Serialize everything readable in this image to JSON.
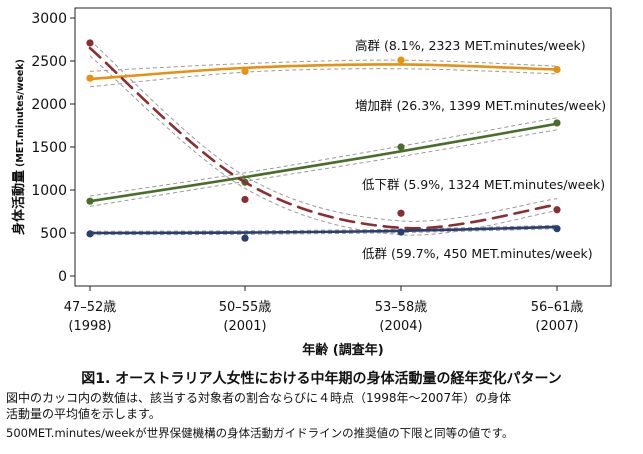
{
  "chart_data": {
    "type": "line",
    "ylabel": "身体活動量",
    "ylabel_unit": "(MET.minutes/week)",
    "xlabel": "年齢 (調査年)",
    "ylim": [
      0,
      3000
    ],
    "yticks": [
      0,
      500,
      1000,
      1500,
      2000,
      2500,
      3000
    ],
    "categories": [
      {
        "age": "47–52歳",
        "year": "(1998)"
      },
      {
        "age": "50–55歳",
        "year": "(2001)"
      },
      {
        "age": "53–58歳",
        "year": "(2004)"
      },
      {
        "age": "56–61歳",
        "year": "(2007)"
      }
    ],
    "series": [
      {
        "name": "高群 (8.1%, 2323 MET.minutes/week)",
        "color": "#e8900f",
        "dash": "solid",
        "points": [
          2300,
          2380,
          2510,
          2400
        ],
        "fit": [
          2290,
          2420,
          2460,
          2400
        ],
        "ci_upper": [
          2380,
          2470,
          2510,
          2440
        ],
        "ci_lower": [
          2200,
          2370,
          2410,
          2350
        ]
      },
      {
        "name": "増加群 (26.3%, 1399 MET.minutes/week)",
        "color": "#4a6e2a",
        "dash": "solid",
        "points": [
          870,
          1090,
          1500,
          1780
        ],
        "fit": [
          870,
          1150,
          1450,
          1770
        ],
        "ci_upper": [
          930,
          1200,
          1510,
          1840
        ],
        "ci_lower": [
          810,
          1100,
          1390,
          1700
        ]
      },
      {
        "name": "低下群 (5.9%, 1324 MET.minutes/week)",
        "color": "#8b2e30",
        "dash": "dashed",
        "points": [
          2710,
          890,
          730,
          770
        ],
        "fit": [
          2650,
          1090,
          560,
          830
        ],
        "ci_upper": [
          2740,
          1160,
          640,
          900
        ],
        "ci_lower": [
          2560,
          1020,
          480,
          760
        ]
      },
      {
        "name": "低群 (59.7%, 450 MET.minutes/week)",
        "color": "#2a3f6e",
        "dash": "solid",
        "points": [
          490,
          440,
          510,
          550
        ],
        "fit": [
          500,
          505,
          525,
          570
        ],
        "ci_upper": [
          520,
          525,
          545,
          590
        ],
        "ci_lower": [
          480,
          485,
          505,
          550
        ]
      }
    ]
  },
  "caption": {
    "title": "図1.  オーストラリア人女性における中年期の身体活動量の経年変化パターン",
    "line1": "図中のカッコ内の数値は、該当する対象者の割合ならびに４時点（1998年～2007年）の身体",
    "line2": "活動量の平均値を示します。",
    "line3": "500MET.minutes/weekが世界保健機構の身体活動ガイドラインの推奨値の下限と同等の値です。"
  }
}
